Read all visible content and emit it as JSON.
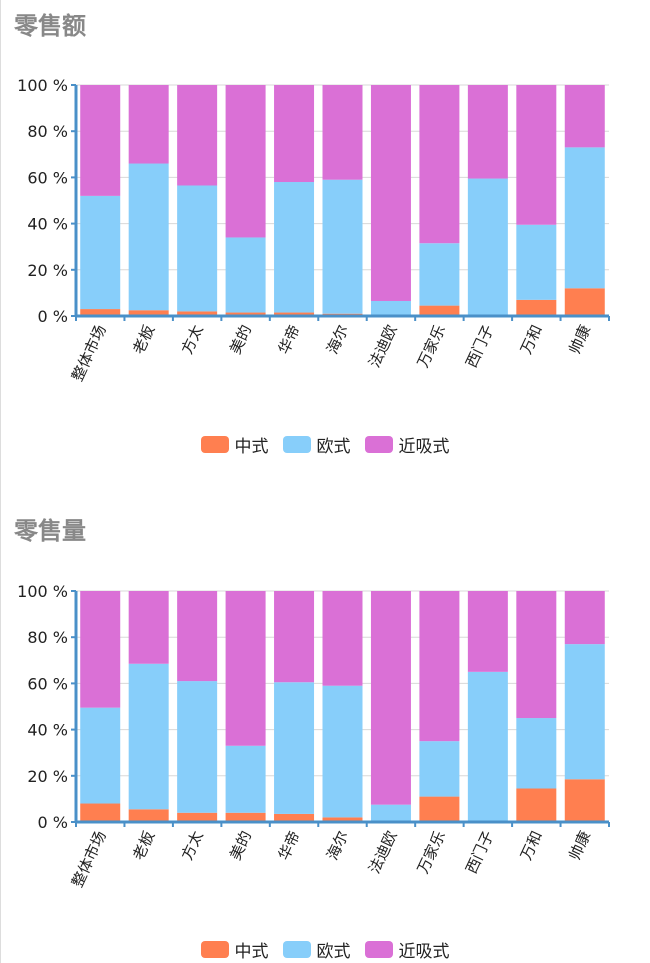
{
  "colors": {
    "zhongshi": "#FF7F50",
    "oushi": "#87CEFA",
    "jinxishi": "#DA70D6"
  },
  "chart_data": [
    {
      "type": "bar",
      "stacked": true,
      "title": "零售额",
      "categories": [
        "整体市场",
        "老板",
        "方太",
        "美的",
        "华帝",
        "海尔",
        "法迪欧",
        "万家乐",
        "西门子",
        "万和",
        "帅康"
      ],
      "ylim": [
        0,
        100
      ],
      "yticks": [
        "0 %",
        "20 %",
        "40 %",
        "60 %",
        "80 %",
        "100 %"
      ],
      "legend_position": "bottom",
      "series": [
        {
          "name": "中式",
          "color": "#FF7F50",
          "values": [
            3,
            2.5,
            2,
            1.5,
            1.5,
            1,
            0,
            4.5,
            0.5,
            7,
            12
          ]
        },
        {
          "name": "欧式",
          "color": "#87CEFA",
          "values": [
            49,
            63.5,
            54.5,
            32.5,
            56.5,
            58,
            6.5,
            27,
            59,
            32.5,
            61
          ]
        },
        {
          "name": "近吸式",
          "color": "#DA70D6",
          "values": [
            48,
            34,
            43.5,
            66,
            42,
            41,
            93.5,
            68.5,
            40.5,
            60.5,
            27
          ]
        }
      ]
    },
    {
      "type": "bar",
      "stacked": true,
      "title": "零售量",
      "categories": [
        "整体市场",
        "老板",
        "方太",
        "美的",
        "华帝",
        "海尔",
        "法迪欧",
        "万家乐",
        "西门子",
        "万和",
        "帅康"
      ],
      "ylim": [
        0,
        100
      ],
      "yticks": [
        "0 %",
        "20 %",
        "40 %",
        "60 %",
        "80 %",
        "100 %"
      ],
      "legend_position": "bottom",
      "series": [
        {
          "name": "中式",
          "color": "#FF7F50",
          "values": [
            8,
            5.5,
            4,
            4,
            3.5,
            2,
            0,
            11,
            0,
            14.5,
            18.5
          ]
        },
        {
          "name": "欧式",
          "color": "#87CEFA",
          "values": [
            41.5,
            63,
            57,
            29,
            57,
            57,
            7.5,
            24,
            65,
            30.5,
            58.5
          ]
        },
        {
          "name": "近吸式",
          "color": "#DA70D6",
          "values": [
            50.5,
            31.5,
            39,
            67,
            39.5,
            41,
            92.5,
            65,
            35,
            55,
            23
          ]
        }
      ]
    }
  ]
}
